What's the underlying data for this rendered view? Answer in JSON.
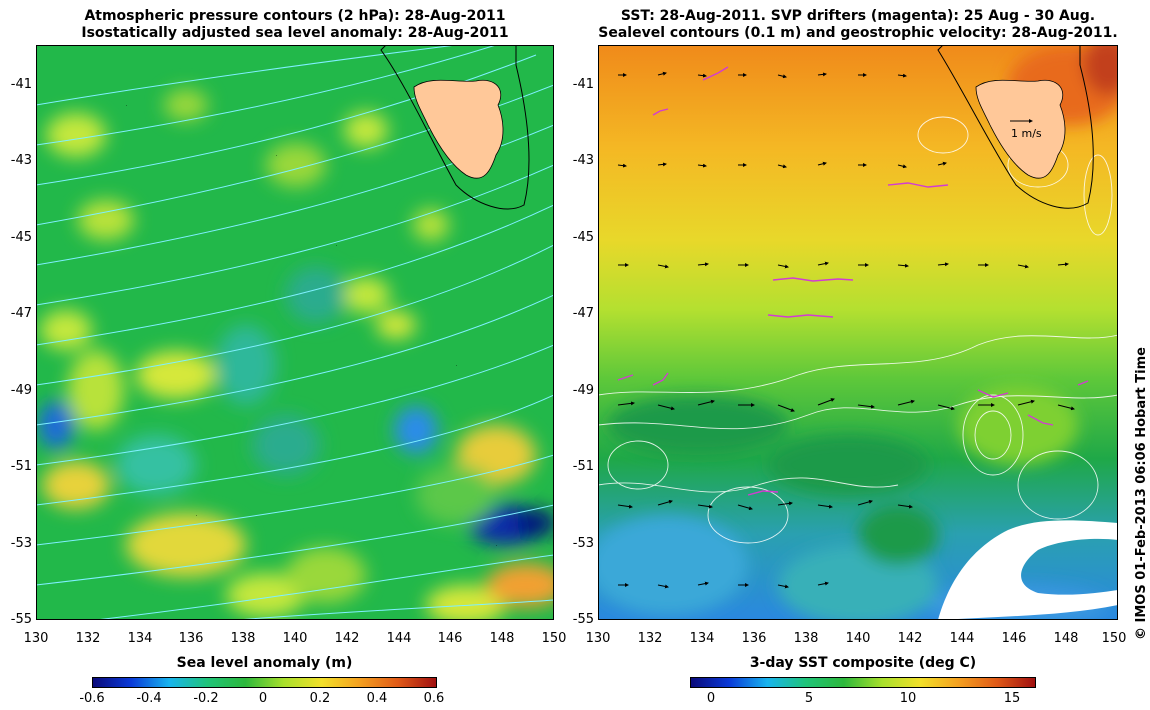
{
  "left_panel": {
    "title_line1": "Atmospheric pressure contours (2 hPa): 28-Aug-2011",
    "title_line2": "Isostatically adjusted sea level anomaly: 28-Aug-2011",
    "colorbar_title": "Sea level anomaly (m)",
    "colorbar_ticks": [
      "-0.6",
      "-0.4",
      "-0.2",
      "0",
      "0.2",
      "0.4",
      "0.6"
    ],
    "contour_color": "#7ff0ff"
  },
  "right_panel": {
    "title_line1": "SST: 28-Aug-2011. SVP drifters (magenta): 25 Aug - 30 Aug.",
    "title_line2": "Sealevel contours (0.1 m) and geostrophic velocity: 28-Aug-2011.",
    "colorbar_title": "3-day SST composite (deg C)",
    "colorbar_ticks": [
      "0",
      "5",
      "10",
      "15"
    ],
    "scale_label": "1 m/s",
    "drifter_color": "#d23cd2"
  },
  "axes": {
    "lat_ticks": [
      "-41",
      "-43",
      "-45",
      "-47",
      "-49",
      "-51",
      "-53",
      "-55"
    ],
    "lon_ticks": [
      "130",
      "132",
      "134",
      "136",
      "138",
      "140",
      "142",
      "144",
      "146",
      "148",
      "150"
    ],
    "lat_range": [
      -55,
      -40
    ],
    "lon_range": [
      130,
      150
    ]
  },
  "land": {
    "name": "Tasmania",
    "fill_color": "#ffc899"
  },
  "credit": "© IMOS 01-Feb-2013 06:06 Hobart Time"
}
